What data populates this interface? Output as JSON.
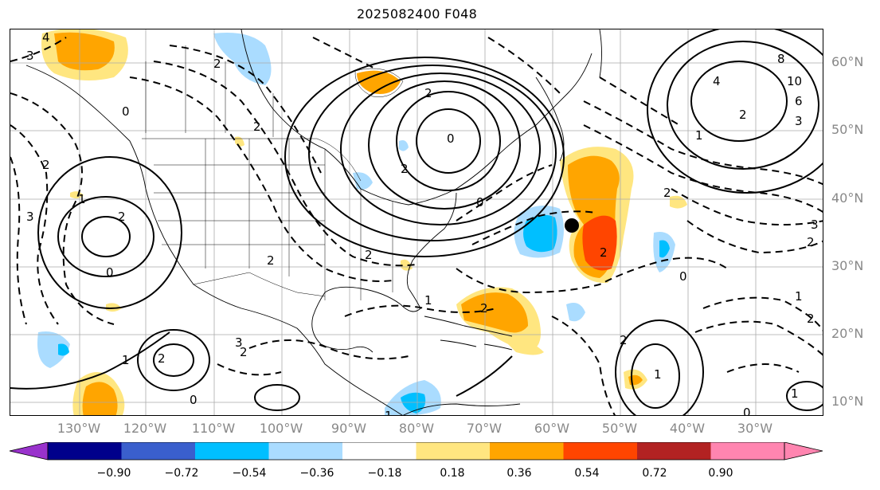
{
  "title": "2025082400 F048",
  "map": {
    "lat_labels": [
      "60°N",
      "50°N",
      "40°N",
      "30°N",
      "20°N",
      "10°N"
    ],
    "lon_labels": [
      "130°W",
      "120°W",
      "110°W",
      "100°W",
      "90°W",
      "80°W",
      "70°W",
      "60°W",
      "50°W",
      "40°W",
      "30°W"
    ],
    "contour_labels": [
      "4",
      "3",
      "2",
      "0",
      "2",
      "2",
      "0",
      "1",
      "0",
      "2",
      "2",
      "8",
      "10",
      "6",
      "4",
      "3",
      "2",
      "1",
      "3",
      "2",
      "2",
      "0",
      "2",
      "2",
      "2",
      "3",
      "2",
      "0",
      "1",
      "2",
      "2",
      "1",
      "3",
      "2",
      "1",
      "0",
      "2",
      "1",
      "1",
      "2",
      "1",
      "0"
    ],
    "fill_colors": {
      "pos_light": "#ffe680",
      "pos_med": "#ffa500",
      "pos_strong": "#ff4500",
      "neg_light": "#aadcff",
      "neg_med": "#00bfff"
    },
    "marker": "storm-center-dot"
  },
  "colorbar": {
    "labels": [
      "−0.90",
      "−0.72",
      "−0.54",
      "−0.36",
      "−0.18",
      "0.18",
      "0.36",
      "0.54",
      "0.72",
      "0.90"
    ],
    "colors": [
      "#9932cc",
      "#00008b",
      "#3a5fcd",
      "#00bfff",
      "#aadcff",
      "#ffffff",
      "#ffe680",
      "#ffa500",
      "#ff4500",
      "#b22222",
      "#ff85b0",
      "#ff85b0"
    ]
  }
}
